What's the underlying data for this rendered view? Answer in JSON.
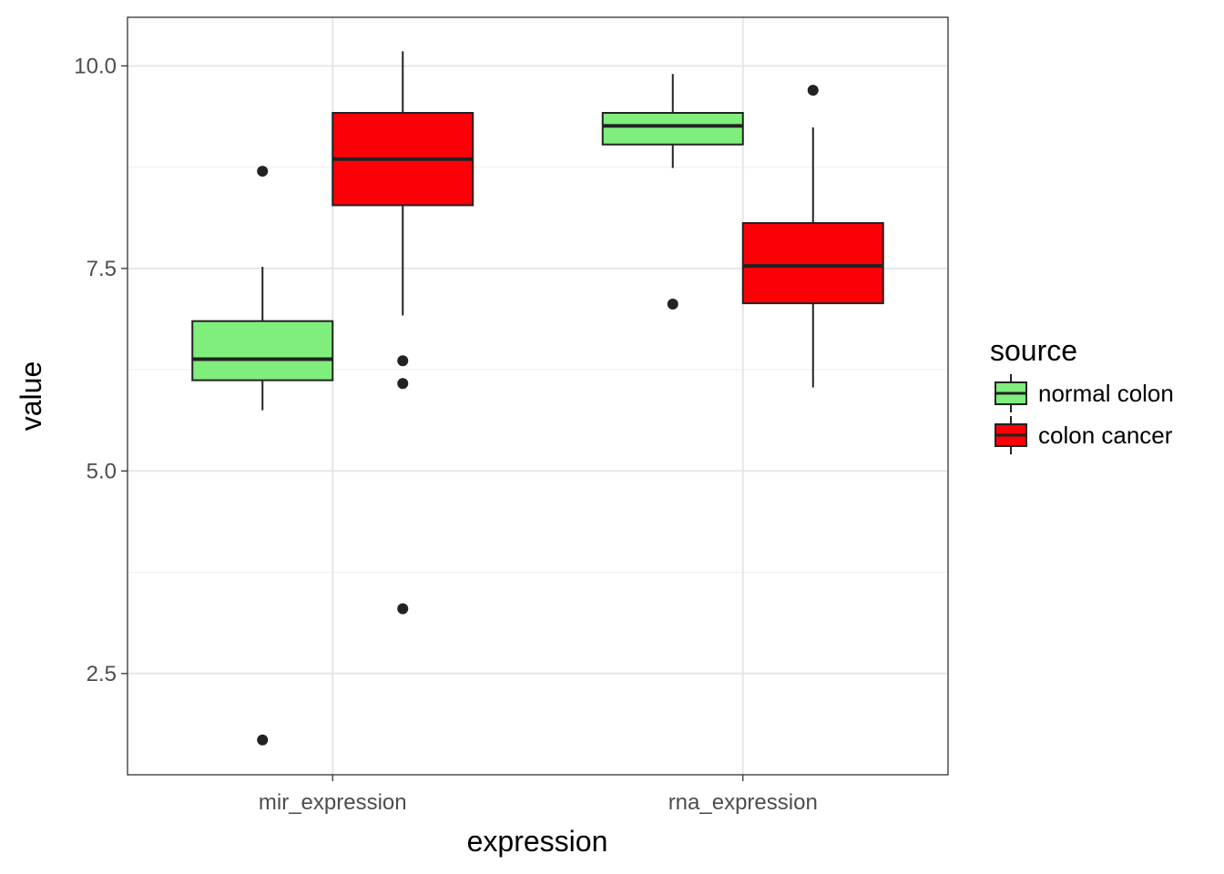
{
  "chart_data": {
    "type": "box",
    "xlabel": "expression",
    "ylabel": "value",
    "categories": [
      "mir_expression",
      "rna_expression"
    ],
    "ylim": [
      1.25,
      10.6
    ],
    "yticks": [
      "2.5",
      "5.0",
      "7.5",
      "10.0"
    ],
    "grid": true,
    "legend": {
      "title": "source",
      "placement": "right",
      "entries": [
        "normal colon",
        "colon cancer"
      ]
    },
    "series": [
      {
        "name": "normal colon",
        "color": "#80ee7c",
        "boxes": [
          {
            "category": "mir_expression",
            "whisker_low": 5.75,
            "q1": 6.12,
            "median": 6.38,
            "q3": 6.85,
            "whisker_high": 7.52,
            "outliers": [
              8.7,
              1.68
            ]
          },
          {
            "category": "rna_expression",
            "whisker_low": 8.74,
            "q1": 9.03,
            "median": 9.26,
            "q3": 9.42,
            "whisker_high": 9.9,
            "outliers": [
              7.06
            ]
          }
        ]
      },
      {
        "name": "colon cancer",
        "color": "#fb0007",
        "boxes": [
          {
            "category": "mir_expression",
            "whisker_low": 6.92,
            "q1": 8.28,
            "median": 8.85,
            "q3": 9.42,
            "whisker_high": 10.18,
            "outliers": [
              6.36,
              6.08,
              3.3
            ]
          },
          {
            "category": "rna_expression",
            "whisker_low": 6.03,
            "q1": 7.07,
            "median": 7.53,
            "q3": 8.06,
            "whisker_high": 9.24,
            "outliers": [
              9.7
            ]
          }
        ]
      }
    ]
  }
}
